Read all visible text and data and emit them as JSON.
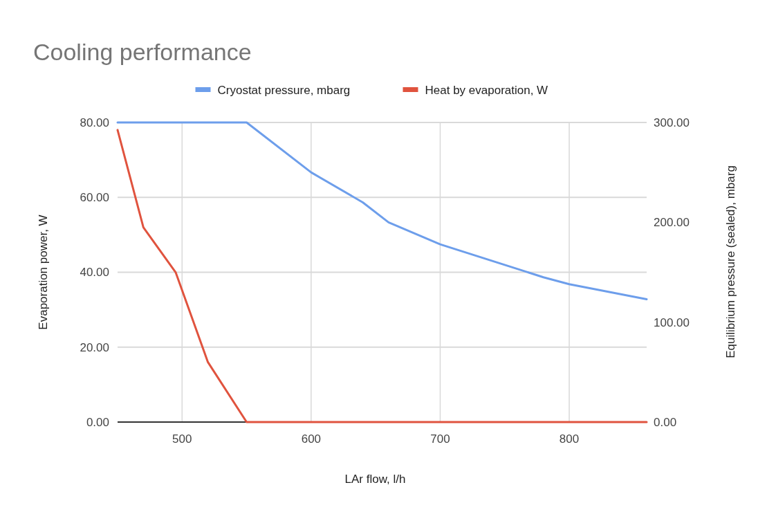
{
  "chart_data": {
    "type": "line",
    "title": "Cooling performance",
    "xlabel": "LAr flow, l/h",
    "ylabel": "Evaporation power, W",
    "y2label": "Equilibrium pressure (sealed), mbarg",
    "xlim": [
      450,
      860
    ],
    "xticks": [
      500,
      600,
      700,
      800
    ],
    "ylim": [
      0,
      80
    ],
    "yticks": [
      {
        "value": 0,
        "label": "0.00"
      },
      {
        "value": 20,
        "label": "20.00"
      },
      {
        "value": 40,
        "label": "40.00"
      },
      {
        "value": 60,
        "label": "60.00"
      },
      {
        "value": 80,
        "label": "80.00"
      }
    ],
    "y2lim": [
      0,
      300
    ],
    "y2ticks": [
      {
        "value": 0,
        "label": "0.00"
      },
      {
        "value": 100,
        "label": "100.00"
      },
      {
        "value": 200,
        "label": "200.00"
      },
      {
        "value": 300,
        "label": "300.00"
      }
    ],
    "grid": true,
    "legend": "top",
    "line_style": "solid",
    "series": [
      {
        "name": "Cryostat pressure, mbarg",
        "color": "#6d9eeb",
        "axis": "y2",
        "x": [
          450,
          550,
          600,
          640,
          660,
          700,
          780,
          800,
          860
        ],
        "values": [
          300,
          300,
          250,
          220,
          200,
          178,
          145,
          138,
          123
        ]
      },
      {
        "name": "Heat by evaporation, W",
        "color": "#e0533e",
        "axis": "y",
        "x": [
          450,
          470,
          495,
          520,
          550,
          860
        ],
        "values": [
          78,
          52,
          40,
          16,
          0,
          0
        ]
      }
    ]
  }
}
